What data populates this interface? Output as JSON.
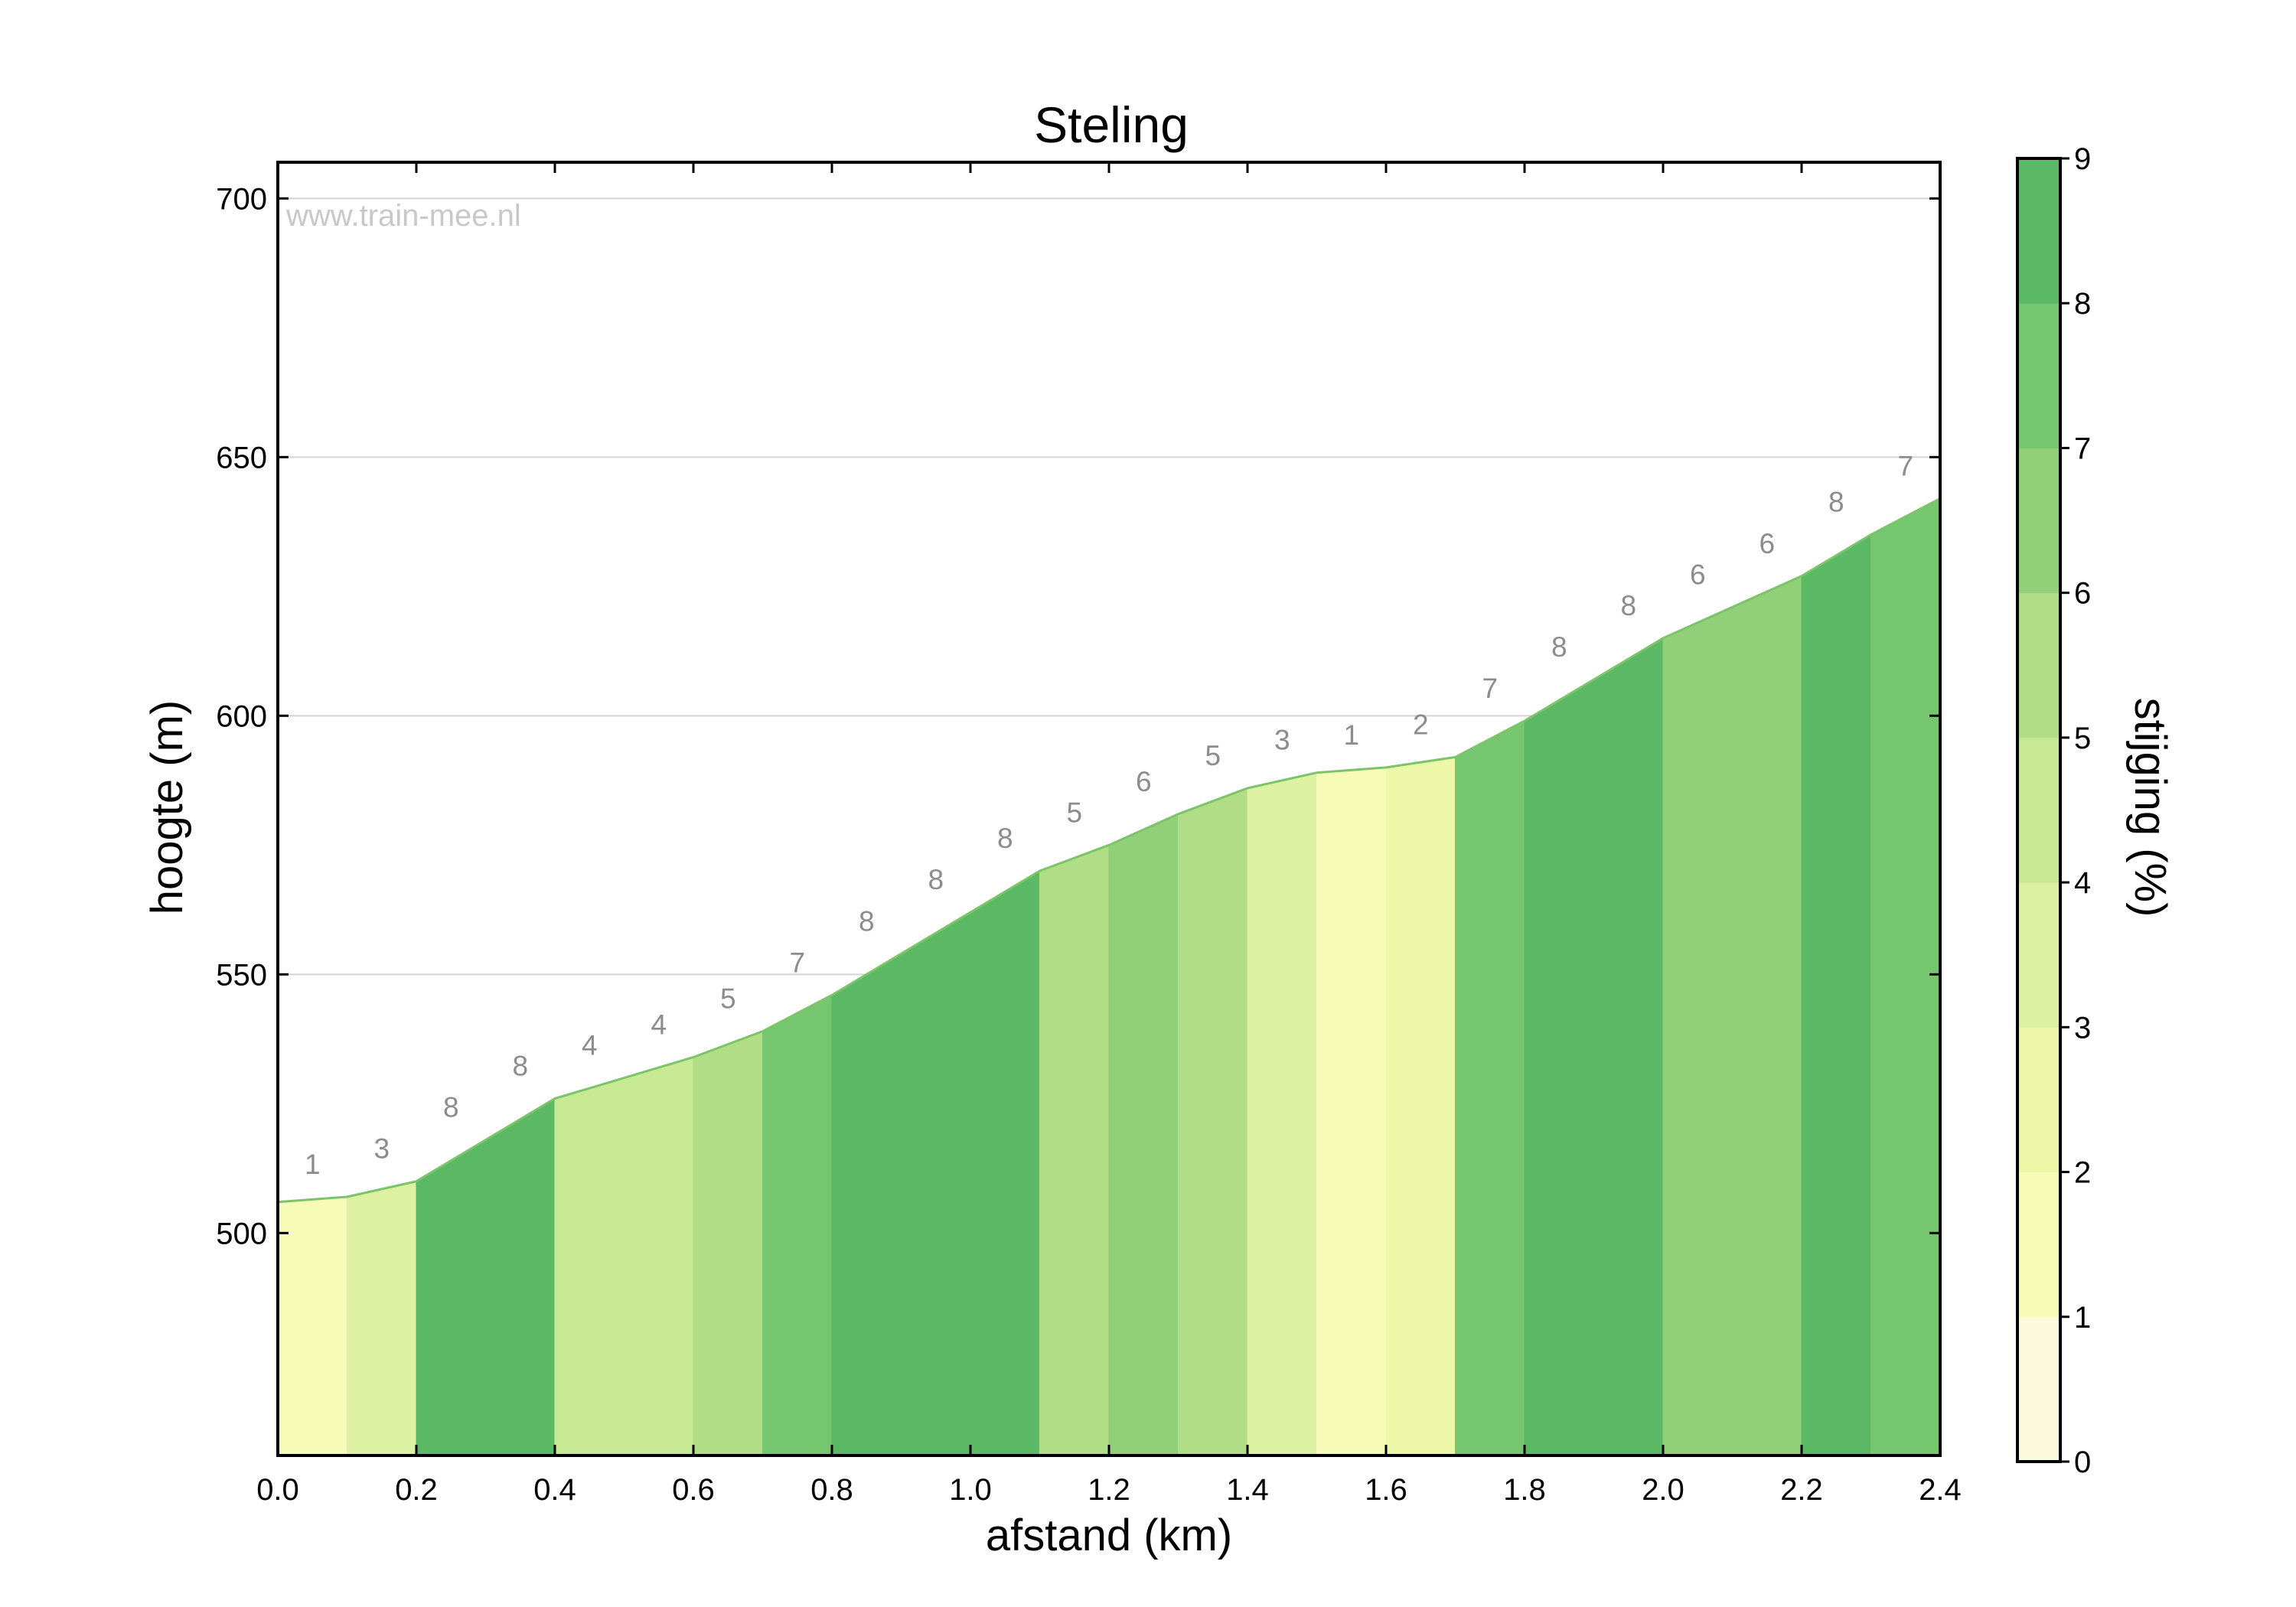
{
  "chart_data": {
    "type": "area",
    "title": "Steling",
    "xlabel": "afstand (km)",
    "ylabel": "hoogte (m)",
    "watermark": "www.train-mee.nl",
    "xlim": [
      0,
      2.4
    ],
    "ylim": [
      457,
      707
    ],
    "x_ticks": [
      "0.0",
      "0.2",
      "0.4",
      "0.6",
      "0.8",
      "1.0",
      "1.2",
      "1.4",
      "1.6",
      "1.8",
      "2.0",
      "2.2",
      "2.4"
    ],
    "y_ticks": [
      "500",
      "550",
      "600",
      "650",
      "700"
    ],
    "grid": "horizontal",
    "segments": [
      {
        "x0": 0.0,
        "x1": 0.1,
        "y0": 506,
        "y1": 507,
        "gradient": 1
      },
      {
        "x0": 0.1,
        "x1": 0.2,
        "y0": 507,
        "y1": 510,
        "gradient": 3
      },
      {
        "x0": 0.2,
        "x1": 0.3,
        "y0": 510,
        "y1": 518,
        "gradient": 8
      },
      {
        "x0": 0.3,
        "x1": 0.4,
        "y0": 518,
        "y1": 526,
        "gradient": 8
      },
      {
        "x0": 0.4,
        "x1": 0.5,
        "y0": 526,
        "y1": 530,
        "gradient": 4
      },
      {
        "x0": 0.5,
        "x1": 0.6,
        "y0": 530,
        "y1": 534,
        "gradient": 4
      },
      {
        "x0": 0.6,
        "x1": 0.7,
        "y0": 534,
        "y1": 539,
        "gradient": 5
      },
      {
        "x0": 0.7,
        "x1": 0.8,
        "y0": 539,
        "y1": 546,
        "gradient": 7
      },
      {
        "x0": 0.8,
        "x1": 0.9,
        "y0": 546,
        "y1": 554,
        "gradient": 8
      },
      {
        "x0": 0.9,
        "x1": 1.0,
        "y0": 554,
        "y1": 562,
        "gradient": 8
      },
      {
        "x0": 1.0,
        "x1": 1.1,
        "y0": 562,
        "y1": 570,
        "gradient": 8
      },
      {
        "x0": 1.1,
        "x1": 1.2,
        "y0": 570,
        "y1": 575,
        "gradient": 5
      },
      {
        "x0": 1.2,
        "x1": 1.3,
        "y0": 575,
        "y1": 581,
        "gradient": 6
      },
      {
        "x0": 1.3,
        "x1": 1.4,
        "y0": 581,
        "y1": 586,
        "gradient": 5
      },
      {
        "x0": 1.4,
        "x1": 1.5,
        "y0": 586,
        "y1": 589,
        "gradient": 3
      },
      {
        "x0": 1.5,
        "x1": 1.6,
        "y0": 589,
        "y1": 590,
        "gradient": 1
      },
      {
        "x0": 1.6,
        "x1": 1.7,
        "y0": 590,
        "y1": 592,
        "gradient": 2
      },
      {
        "x0": 1.7,
        "x1": 1.8,
        "y0": 592,
        "y1": 599,
        "gradient": 7
      },
      {
        "x0": 1.8,
        "x1": 1.9,
        "y0": 599,
        "y1": 607,
        "gradient": 8
      },
      {
        "x0": 1.9,
        "x1": 2.0,
        "y0": 607,
        "y1": 615,
        "gradient": 8
      },
      {
        "x0": 2.0,
        "x1": 2.1,
        "y0": 615,
        "y1": 621,
        "gradient": 6
      },
      {
        "x0": 2.1,
        "x1": 2.2,
        "y0": 621,
        "y1": 627,
        "gradient": 6
      },
      {
        "x0": 2.2,
        "x1": 2.3,
        "y0": 627,
        "y1": 635,
        "gradient": 8
      },
      {
        "x0": 2.3,
        "x1": 2.4,
        "y0": 635,
        "y1": 642,
        "gradient": 7
      }
    ],
    "colorbar": {
      "label": "stijging (%)",
      "range": [
        0,
        9
      ],
      "ticks": [
        "0",
        "1",
        "2",
        "3",
        "4",
        "5",
        "6",
        "7",
        "8",
        "9"
      ],
      "colors": [
        "#fbfadc",
        "#f6fbb7",
        "#ecf8a8",
        "#dcf1a1",
        "#c7e994",
        "#b0dd85",
        "#92cf79",
        "#76c66f",
        "#5bb864"
      ]
    }
  }
}
